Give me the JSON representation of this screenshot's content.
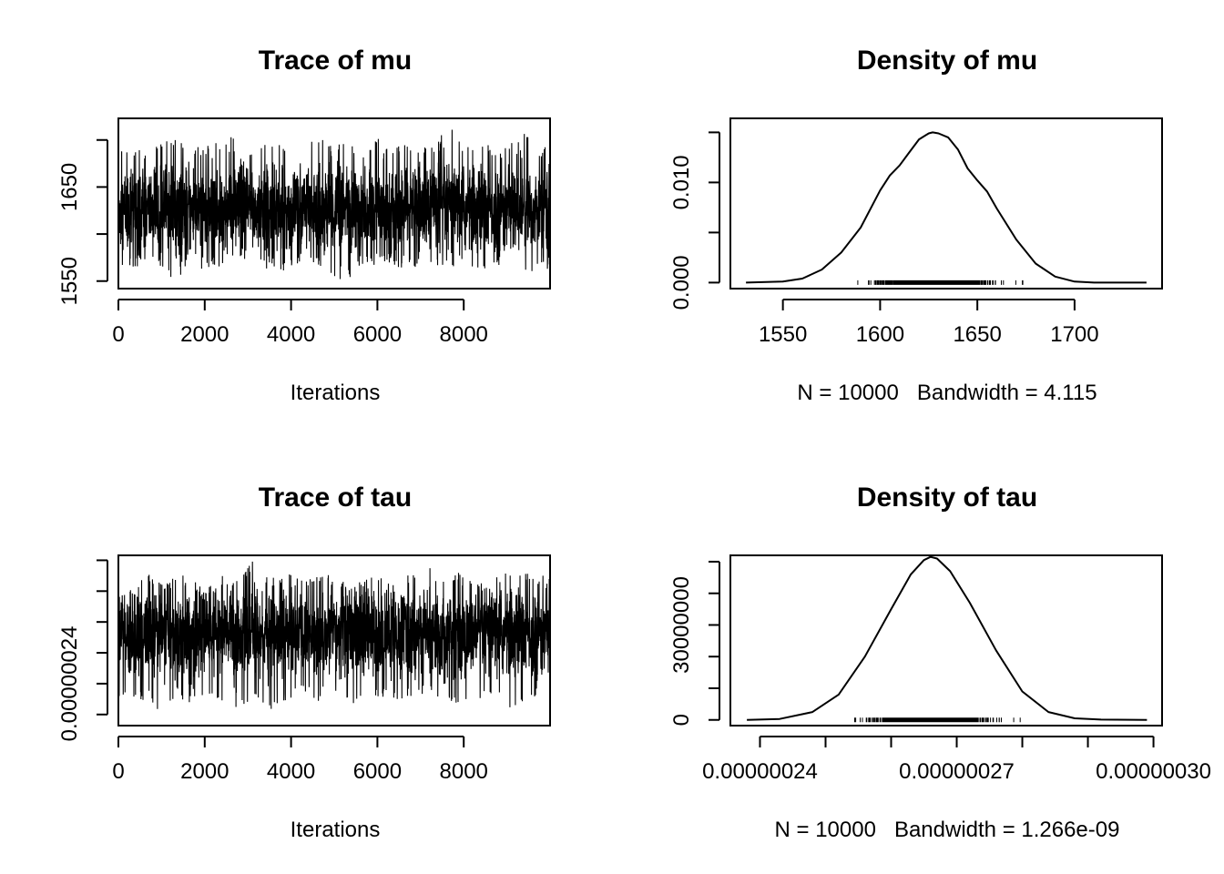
{
  "chart_data": [
    {
      "type": "line",
      "title": "Trace of mu",
      "xlabel": "Iterations",
      "ylabel": "",
      "xlim": [
        0,
        10000
      ],
      "ylim": [
        1542,
        1723
      ],
      "x_ticks": [
        0,
        2000,
        4000,
        6000,
        8000
      ],
      "x_tick_labels": [
        "0",
        "2000",
        "4000",
        "6000",
        "8000"
      ],
      "y_ticks": [
        1550,
        1600,
        1650,
        1700
      ],
      "y_tick_labels": [
        "1550",
        "",
        "1650",
        ""
      ],
      "series": [
        {
          "n_iterations": 10000,
          "center": 1626,
          "band_low": 1585,
          "band_high": 1667,
          "trace_x": [
            60,
            300,
            700,
            1050,
            1350,
            1600,
            2000,
            2300,
            2650,
            3000,
            3300,
            3700,
            4100,
            4500,
            4900,
            5200,
            5600,
            6000,
            6300,
            6600,
            6950,
            7300,
            7700,
            8000,
            8400,
            8800,
            9100,
            9450,
            9800
          ],
          "trace_y_max": [
            1690,
            1695,
            1688,
            1697,
            1706,
            1690,
            1694,
            1698,
            1704,
            1692,
            1696,
            1700,
            1690,
            1708,
            1694,
            1698,
            1692,
            1702,
            1690,
            1700,
            1696,
            1694,
            1723,
            1692,
            1698,
            1694,
            1700,
            1708,
            1696
          ],
          "trace_y_min": [
            1568,
            1562,
            1572,
            1558,
            1548,
            1570,
            1560,
            1565,
            1572,
            1562,
            1566,
            1558,
            1565,
            1570,
            1560,
            1547,
            1564,
            1568,
            1570,
            1562,
            1566,
            1568,
            1561,
            1565,
            1560,
            1566,
            1552,
            1558,
            1563
          ]
        }
      ],
      "grid": false,
      "legend": "none"
    },
    {
      "type": "line",
      "title": "Density of mu",
      "xlabel": "N = 10000   Bandwidth = 4.115",
      "ylabel": "",
      "xlim": [
        1523,
        1745
      ],
      "ylim": [
        -0.0006,
        0.0164
      ],
      "x_ticks": [
        1550,
        1600,
        1650,
        1700
      ],
      "x_tick_labels": [
        "1550",
        "1600",
        "1650",
        "1700"
      ],
      "y_ticks": [
        0.0,
        0.005,
        0.01,
        0.015
      ],
      "y_tick_labels": [
        "0.000",
        "",
        "0.010",
        ""
      ],
      "series": [
        {
          "x": [
            1531,
            1550,
            1560,
            1570,
            1580,
            1590,
            1600,
            1605,
            1610,
            1615,
            1620,
            1625,
            1627,
            1630,
            1635,
            1640,
            1645,
            1650,
            1655,
            1660,
            1670,
            1680,
            1690,
            1700,
            1710,
            1720,
            1737
          ],
          "y": [
            0.0,
            0.0001,
            0.0004,
            0.0013,
            0.003,
            0.0055,
            0.0092,
            0.0107,
            0.0117,
            0.013,
            0.0143,
            0.0149,
            0.015,
            0.0149,
            0.0145,
            0.0133,
            0.0114,
            0.0102,
            0.0091,
            0.0074,
            0.0043,
            0.0019,
            0.0006,
            0.0001,
            0.0,
            0.0,
            0.0
          ]
        }
      ],
      "rug": {
        "from": 1545,
        "to": 1725
      },
      "grid": false,
      "legend": "none"
    },
    {
      "type": "line",
      "title": "Trace of tau",
      "xlabel": "Iterations",
      "ylabel": "",
      "xlim": [
        0,
        10000
      ],
      "ylim": [
        2.364e-07,
        2.916e-07
      ],
      "x_ticks": [
        0,
        2000,
        4000,
        6000,
        8000
      ],
      "x_tick_labels": [
        "0",
        "2000",
        "4000",
        "6000",
        "8000"
      ],
      "y_ticks": [
        2.4e-07,
        2.5e-07,
        2.6e-07,
        2.7e-07,
        2.8e-07,
        2.9e-07
      ],
      "y_tick_labels": [
        "",
        "0.00000024",
        "",
        "",
        "",
        ""
      ],
      "series": [
        {
          "n_iterations": 10000,
          "center": 2.663e-07,
          "band_low": 2.53e-07,
          "band_high": 2.78e-07,
          "trace_x": [
            60,
            300,
            700,
            1000,
            1350,
            1700,
            2000,
            2400,
            2800,
            3200,
            3500,
            3900,
            4300,
            4700,
            5100,
            5500,
            5900,
            6300,
            6700,
            7100,
            7500,
            7900,
            8300,
            8700,
            9100,
            9500,
            9800
          ],
          "trace_y_max": [
            2.84e-07,
            2.8e-07,
            2.86e-07,
            2.82e-07,
            2.86e-07,
            2.84e-07,
            2.8e-07,
            2.85e-07,
            2.83e-07,
            2.92e-07,
            2.84e-07,
            2.86e-07,
            2.83e-07,
            2.86e-07,
            2.84e-07,
            2.82e-07,
            2.86e-07,
            2.82e-07,
            2.85e-07,
            2.89e-07,
            2.84e-07,
            2.86e-07,
            2.82e-07,
            2.84e-07,
            2.87e-07,
            2.86e-07,
            2.85e-07
          ],
          "trace_y_min": [
            2.46e-07,
            2.44e-07,
            2.45e-07,
            2.38e-07,
            2.46e-07,
            2.43e-07,
            2.47e-07,
            2.44e-07,
            2.42e-07,
            2.46e-07,
            2.4e-07,
            2.45e-07,
            2.47e-07,
            2.43e-07,
            2.45e-07,
            2.42e-07,
            2.46e-07,
            2.45e-07,
            2.44e-07,
            2.47e-07,
            2.45e-07,
            2.43e-07,
            2.44e-07,
            2.46e-07,
            2.41e-07,
            2.45e-07,
            2.44e-07
          ]
        }
      ],
      "grid": false,
      "legend": "none"
    },
    {
      "type": "line",
      "title": "Density of tau",
      "xlabel": "N = 10000   Bandwidth = 1.266e-09",
      "ylabel": "",
      "xlim": [
        2.3549e-07,
        3.0131e-07
      ],
      "ylim": [
        -1800000,
        52000000
      ],
      "x_ticks": [
        2.4e-07,
        2.5e-07,
        2.6e-07,
        2.7e-07,
        2.8e-07,
        2.9e-07,
        3e-07
      ],
      "x_tick_labels": [
        "0.00000024",
        "",
        "",
        "0.00000027",
        "",
        "",
        "0.00000030"
      ],
      "y_ticks": [
        0,
        10000000,
        20000000,
        30000000,
        40000000,
        50000000
      ],
      "y_tick_labels": [
        "0",
        "",
        "",
        "30000000",
        "",
        ""
      ],
      "series": [
        {
          "x": [
            2.38e-07,
            2.43e-07,
            2.48e-07,
            2.52e-07,
            2.56e-07,
            2.6e-07,
            2.63e-07,
            2.65e-07,
            2.66e-07,
            2.67e-07,
            2.69e-07,
            2.72e-07,
            2.76e-07,
            2.8e-07,
            2.84e-07,
            2.88e-07,
            2.92e-07,
            2.99e-07
          ],
          "y": [
            0,
            300000,
            2500000,
            8000000,
            20000000,
            35000000,
            46000000,
            50500000,
            51500000,
            51000000,
            47000000,
            37000000,
            22000000,
            9000000,
            2500000,
            500000,
            100000,
            0
          ]
        }
      ],
      "rug": {
        "from": 2.4e-07,
        "to": 2.9e-07
      },
      "grid": false,
      "legend": "none"
    }
  ]
}
